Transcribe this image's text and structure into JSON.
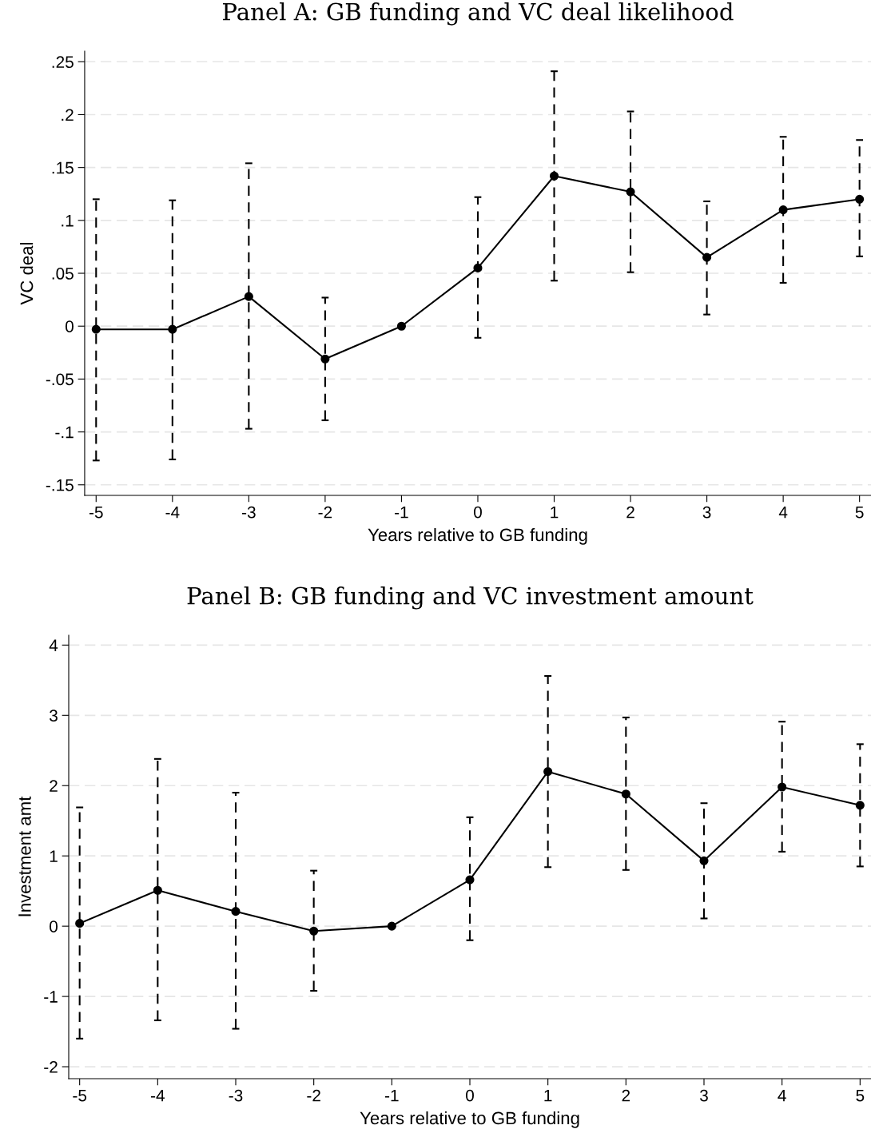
{
  "chart_data": [
    {
      "type": "line",
      "title": "Panel A: GB funding and VC deal likelihood",
      "xlabel": "Years relative to GB funding",
      "ylabel": "VC deal",
      "x": [
        -5,
        -4,
        -3,
        -2,
        -1,
        0,
        1,
        2,
        3,
        4,
        5
      ],
      "series": [
        {
          "color": "#000000",
          "values": [
            -0.003,
            -0.003,
            0.028,
            -0.031,
            0,
            0.055,
            0.142,
            0.127,
            0.065,
            0.11,
            0.12
          ],
          "errors": [
            [
              -0.127,
              0.12
            ],
            [
              -0.126,
              0.119
            ],
            [
              -0.097,
              0.154
            ],
            [
              -0.089,
              0.027
            ],
            null,
            [
              -0.011,
              0.122
            ],
            [
              0.043,
              0.241
            ],
            [
              0.051,
              0.203
            ],
            [
              0.011,
              0.118
            ],
            [
              0.041,
              0.179
            ],
            [
              0.066,
              0.176
            ]
          ]
        }
      ],
      "xlim": [
        -5.15,
        5.15
      ],
      "xticks": [
        -5,
        -4,
        -3,
        -2,
        -1,
        0,
        1,
        2,
        3,
        4,
        5
      ],
      "ylim": [
        -0.16,
        0.26
      ],
      "yticks": [
        {
          "value": -0.15,
          "label": "-.15"
        },
        {
          "value": -0.1,
          "label": "-.1"
        },
        {
          "value": -0.05,
          "label": "-.05"
        },
        0,
        {
          "value": 0.05,
          "label": ".05"
        },
        {
          "value": 0.1,
          "label": ".1"
        },
        {
          "value": 0.15,
          "label": ".15"
        },
        {
          "value": 0.2,
          "label": ".2"
        },
        {
          "value": 0.25,
          "label": ".25"
        }
      ],
      "grid": "y",
      "marker": "circle",
      "line_style": "solid"
    },
    {
      "type": "line",
      "title": "Panel B: GB funding and VC investment amount",
      "xlabel": "Years relative to GB funding",
      "ylabel": "Investment amt",
      "x": [
        -5,
        -4,
        -3,
        -2,
        -1,
        0,
        1,
        2,
        3,
        4,
        5
      ],
      "series": [
        {
          "color": "#000000",
          "values": [
            0.04,
            0.51,
            0.21,
            -0.07,
            0,
            0.66,
            2.2,
            1.88,
            0.93,
            1.98,
            1.72
          ],
          "errors": [
            [
              -1.6,
              1.69
            ],
            [
              -1.34,
              2.38
            ],
            [
              -1.46,
              1.9
            ],
            [
              -0.92,
              0.79
            ],
            null,
            [
              -0.2,
              1.55
            ],
            [
              0.84,
              3.56
            ],
            [
              0.8,
              2.97
            ],
            [
              0.11,
              1.75
            ],
            [
              1.06,
              2.91
            ],
            [
              0.85,
              2.59
            ]
          ]
        }
      ],
      "xlim": [
        -5.14,
        5.14
      ],
      "xticks": [
        -5,
        -4,
        -3,
        -2,
        -1,
        0,
        1,
        2,
        3,
        4,
        5
      ],
      "ylim": [
        -2.17,
        4.14
      ],
      "yticks": [
        -2,
        -1,
        0,
        1,
        2,
        3,
        4
      ],
      "grid": "y",
      "marker": "circle",
      "line_style": "solid"
    }
  ]
}
